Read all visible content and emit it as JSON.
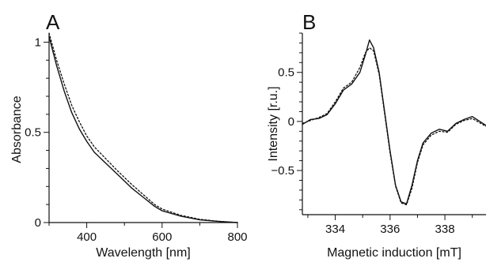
{
  "chart_data": [
    {
      "panel": "A",
      "type": "line",
      "xlabel": "Wavelength [nm]",
      "ylabel": "Absorbance",
      "xlim": [
        300,
        800
      ],
      "ylim": [
        0,
        1.05
      ],
      "xticks": [
        400,
        600,
        800
      ],
      "xtick_labels": [
        "400",
        "600",
        "800"
      ],
      "yticks": [
        0,
        0.5,
        1
      ],
      "ytick_labels": [
        "0",
        "0.5",
        "1"
      ],
      "grid": false,
      "legend": "none",
      "series": [
        {
          "style": "solid",
          "x": [
            300,
            320,
            340,
            360,
            380,
            400,
            420,
            450,
            480,
            500,
            520,
            550,
            580,
            600,
            650,
            700,
            750,
            800
          ],
          "y": [
            1.03,
            0.87,
            0.73,
            0.61,
            0.52,
            0.45,
            0.39,
            0.33,
            0.27,
            0.23,
            0.19,
            0.14,
            0.09,
            0.065,
            0.035,
            0.015,
            0.006,
            0.0
          ]
        },
        {
          "style": "dotted",
          "x": [
            300,
            320,
            340,
            360,
            380,
            400,
            420,
            450,
            480,
            500,
            520,
            550,
            580,
            600,
            650,
            700,
            750,
            800
          ],
          "y": [
            1.05,
            0.9,
            0.77,
            0.65,
            0.56,
            0.48,
            0.42,
            0.355,
            0.29,
            0.25,
            0.21,
            0.155,
            0.1,
            0.075,
            0.04,
            0.018,
            0.007,
            0.0
          ]
        }
      ]
    },
    {
      "panel": "B",
      "type": "line",
      "xlabel": "Magnetic induction [mT]",
      "ylabel": "Intensity [r.u.]",
      "xlim": [
        332.8,
        339.5
      ],
      "ylim": [
        -0.95,
        0.9
      ],
      "xticks": [
        334,
        336,
        338
      ],
      "xtick_labels": [
        "334",
        "336",
        "338"
      ],
      "yticks": [
        -0.5,
        0,
        0.5
      ],
      "ytick_labels": [
        "−0.5",
        "0",
        "0.5"
      ],
      "grid": false,
      "legend": "none",
      "series": [
        {
          "style": "solid",
          "x": [
            332.8,
            333.1,
            333.4,
            333.7,
            334.0,
            334.3,
            334.6,
            334.9,
            335.1,
            335.25,
            335.4,
            335.6,
            335.8,
            336.0,
            336.2,
            336.4,
            336.6,
            336.8,
            337.0,
            337.2,
            337.5,
            337.8,
            338.1,
            338.4,
            338.7,
            339.0,
            339.5
          ],
          "y": [
            -0.03,
            0.02,
            0.03,
            0.07,
            0.18,
            0.32,
            0.38,
            0.5,
            0.68,
            0.83,
            0.75,
            0.5,
            0.1,
            -0.3,
            -0.65,
            -0.82,
            -0.84,
            -0.65,
            -0.4,
            -0.22,
            -0.12,
            -0.08,
            -0.1,
            -0.02,
            0.02,
            0.05,
            -0.04
          ]
        },
        {
          "style": "dotted",
          "x": [
            332.8,
            333.1,
            333.4,
            333.7,
            334.0,
            334.3,
            334.6,
            334.9,
            335.1,
            335.25,
            335.4,
            335.6,
            335.8,
            336.0,
            336.2,
            336.4,
            336.6,
            336.8,
            337.0,
            337.2,
            337.5,
            337.8,
            338.1,
            338.4,
            338.7,
            339.0,
            339.5
          ],
          "y": [
            -0.02,
            0.01,
            0.04,
            0.08,
            0.2,
            0.34,
            0.4,
            0.55,
            0.7,
            0.75,
            0.72,
            0.48,
            0.08,
            -0.32,
            -0.66,
            -0.83,
            -0.85,
            -0.68,
            -0.42,
            -0.24,
            -0.14,
            -0.1,
            -0.11,
            -0.03,
            0.01,
            0.03,
            -0.05
          ]
        }
      ]
    }
  ]
}
